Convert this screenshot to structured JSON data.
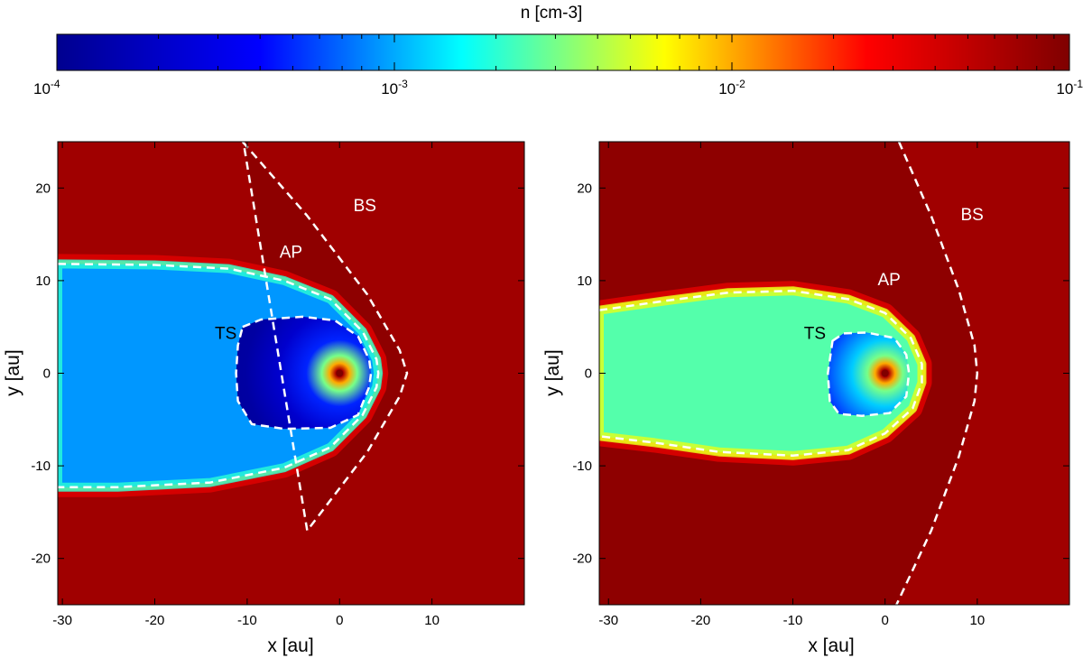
{
  "colorbar": {
    "label": "n [cm-3]",
    "scale": "log",
    "range": [
      0.0001,
      0.1
    ],
    "colormap": [
      "#00008f",
      "#0000ff",
      "#00ffff",
      "#ffff00",
      "#ff0000",
      "#7f0000"
    ],
    "ticks": [
      {
        "value": 0.0001,
        "base": "10",
        "exp": "-4"
      },
      {
        "value": 0.001,
        "base": "10",
        "exp": "-3"
      },
      {
        "value": 0.01,
        "base": "10",
        "exp": "-2"
      },
      {
        "value": 0.1,
        "base": "10",
        "exp": "-1"
      }
    ]
  },
  "chart_data": [
    {
      "type": "heatmap",
      "title": "",
      "xlabel": "x [au]",
      "ylabel": "y [au]",
      "xlim": [
        -30.5,
        20
      ],
      "ylim": [
        -25,
        25
      ],
      "xticks": [
        -30,
        -20,
        -10,
        0,
        10
      ],
      "yticks": [
        -20,
        -10,
        0,
        10,
        20
      ],
      "xtick_labels": [
        "-30",
        "-20",
        "-10",
        "0",
        "10"
      ],
      "ytick_labels": [
        "-20",
        "-10",
        "0",
        "10",
        "20"
      ],
      "density_regions": {
        "ambient_ism": 0.07,
        "heliosheath_ap_to_bs": 0.085,
        "heliotail": 0.0009,
        "supersonic_wind_min": 0.00012,
        "star_peak": 0.1
      },
      "boundaries": [
        {
          "name": "BS",
          "label_at": [
            1.5,
            17.5
          ],
          "points": [
            [
              -10.5,
              25
            ],
            [
              -3.5,
              17
            ],
            [
              3,
              8.5
            ],
            [
              6.5,
              2.5
            ],
            [
              7.3,
              0
            ],
            [
              6.5,
              -2.5
            ],
            [
              3,
              -8.5
            ],
            [
              -3.5,
              -17
            ],
            [
              -10.5,
              25.5
            ]
          ]
        },
        {
          "name": "AP",
          "label_at": [
            -6.5,
            12.5
          ],
          "points": [
            [
              -30.5,
              11.8
            ],
            [
              -20,
              11.7
            ],
            [
              -12,
              11.3
            ],
            [
              -6,
              10
            ],
            [
              -1,
              8
            ],
            [
              2.5,
              4.5
            ],
            [
              4,
              1.5
            ],
            [
              4.2,
              0
            ],
            [
              4,
              -1.5
            ],
            [
              2.5,
              -4.5
            ],
            [
              -1,
              -8
            ],
            [
              -6,
              -10.2
            ],
            [
              -14,
              -11.8
            ],
            [
              -24,
              -12.3
            ],
            [
              -30.5,
              -12.3
            ]
          ]
        },
        {
          "name": "TS",
          "label_at": [
            -13.5,
            3.7
          ],
          "points": [
            [
              -10.5,
              5
            ],
            [
              -8.5,
              5.8
            ],
            [
              -4,
              6.1
            ],
            [
              -0.5,
              5.7
            ],
            [
              2,
              4
            ],
            [
              3.2,
              1.5
            ],
            [
              3.4,
              0
            ],
            [
              3.2,
              -1.5
            ],
            [
              2,
              -4.5
            ],
            [
              -1,
              -5.9
            ],
            [
              -6,
              -6
            ],
            [
              -9.5,
              -5.5
            ],
            [
              -11,
              -3
            ],
            [
              -11.2,
              0
            ],
            [
              -11,
              3
            ],
            [
              -10.5,
              5
            ]
          ]
        }
      ]
    },
    {
      "type": "heatmap",
      "title": "",
      "xlabel": "x [au]",
      "ylabel": "y [au]",
      "xlim": [
        -31,
        20
      ],
      "ylim": [
        -25,
        25
      ],
      "xticks": [
        -30,
        -20,
        -10,
        0,
        10
      ],
      "yticks": [
        -20,
        -10,
        0,
        10,
        20
      ],
      "xtick_labels": [
        "-30",
        "-20",
        "-10",
        "0",
        "10"
      ],
      "ytick_labels": [
        "-20",
        "-10",
        "0",
        "10",
        "20"
      ],
      "density_regions": {
        "ambient_ism": 0.07,
        "heliosheath_ap_to_bs": 0.085,
        "heliotail": 0.0025,
        "supersonic_wind_min": 0.0003,
        "star_peak": 0.1
      },
      "boundaries": [
        {
          "name": "BS",
          "label_at": [
            8.2,
            16.5
          ],
          "points": [
            [
              1.5,
              25
            ],
            [
              5,
              17
            ],
            [
              8,
              9
            ],
            [
              9.7,
              3
            ],
            [
              10,
              0
            ],
            [
              9.7,
              -3
            ],
            [
              8,
              -9
            ],
            [
              5,
              -17
            ],
            [
              1,
              -25.5
            ]
          ]
        },
        {
          "name": "AP",
          "label_at": [
            -0.8,
            9.5
          ],
          "points": [
            [
              -31,
              6.8
            ],
            [
              -24,
              7.8
            ],
            [
              -17,
              8.7
            ],
            [
              -10,
              8.9
            ],
            [
              -4,
              8
            ],
            [
              0,
              6.5
            ],
            [
              2.8,
              3.8
            ],
            [
              4,
              1
            ],
            [
              4,
              -1
            ],
            [
              3,
              -3.8
            ],
            [
              0,
              -6.5
            ],
            [
              -4,
              -8.3
            ],
            [
              -10,
              -8.9
            ],
            [
              -18,
              -8.5
            ],
            [
              -25,
              -7.5
            ],
            [
              -31,
              -6.8
            ]
          ]
        },
        {
          "name": "TS",
          "label_at": [
            -8.8,
            3.7
          ],
          "points": [
            [
              -5.7,
              3.5
            ],
            [
              -4.5,
              4.3
            ],
            [
              -2,
              4.4
            ],
            [
              1,
              3.8
            ],
            [
              2.3,
              2
            ],
            [
              2.6,
              0
            ],
            [
              2.3,
              -2.5
            ],
            [
              0.5,
              -4.3
            ],
            [
              -2.5,
              -4.6
            ],
            [
              -5,
              -4.4
            ],
            [
              -6,
              -3
            ],
            [
              -6.2,
              0
            ],
            [
              -5.7,
              3.5
            ]
          ]
        }
      ]
    }
  ]
}
